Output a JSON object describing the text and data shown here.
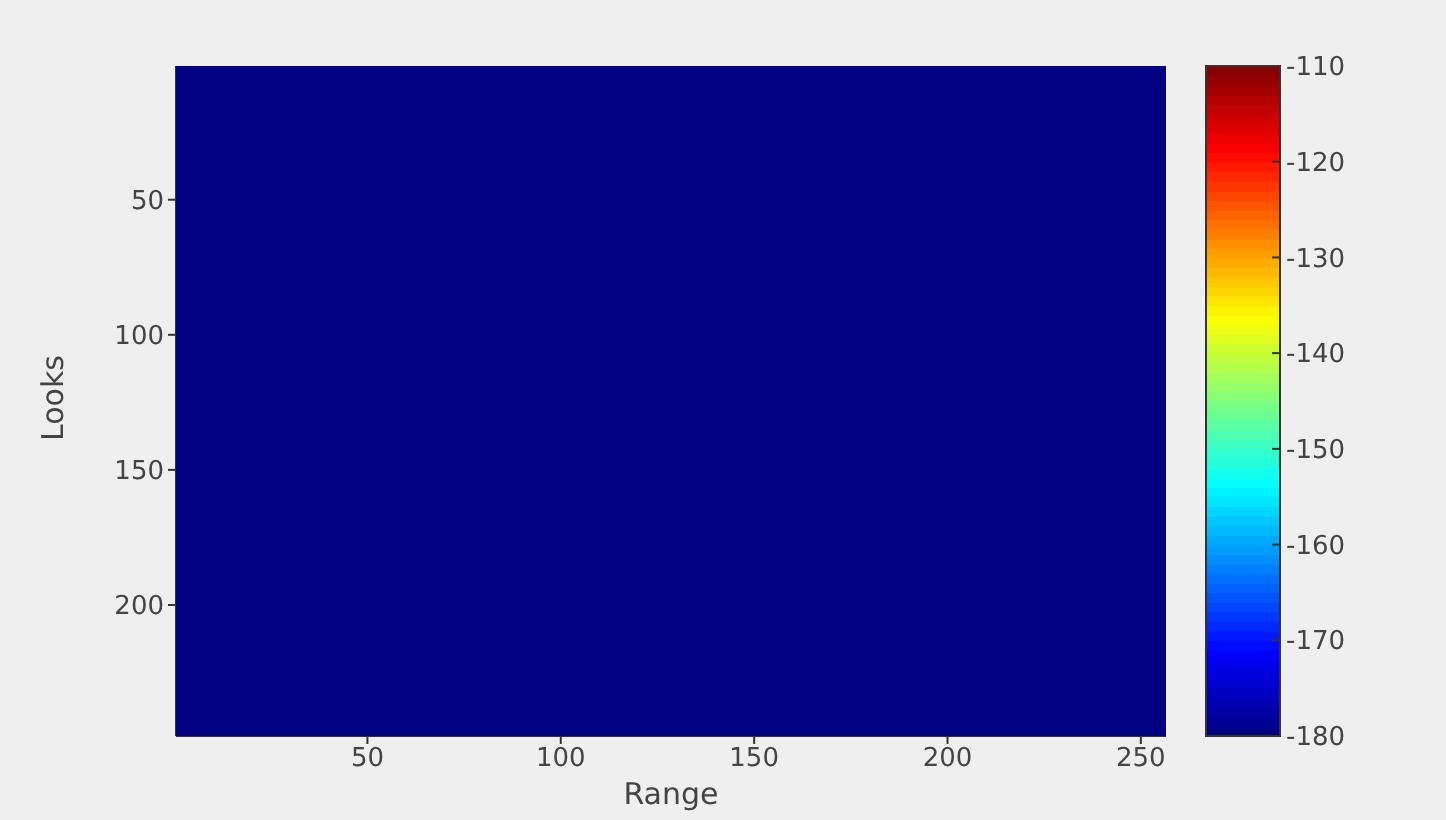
{
  "chart_data": {
    "type": "heatmap",
    "xlabel": "Range",
    "ylabel": "Looks",
    "xlim": [
      0.5,
      256.5
    ],
    "xticks": [
      50,
      100,
      150,
      200,
      250
    ],
    "ylim": [
      248.5,
      0.5
    ],
    "yticks": [
      50,
      100,
      150,
      200
    ],
    "cells": [
      [
        -180
      ]
    ],
    "clim": [
      -180,
      -110
    ],
    "cticks": [
      -180,
      -170,
      -160,
      -150,
      -140,
      -130,
      -120,
      -110
    ]
  }
}
